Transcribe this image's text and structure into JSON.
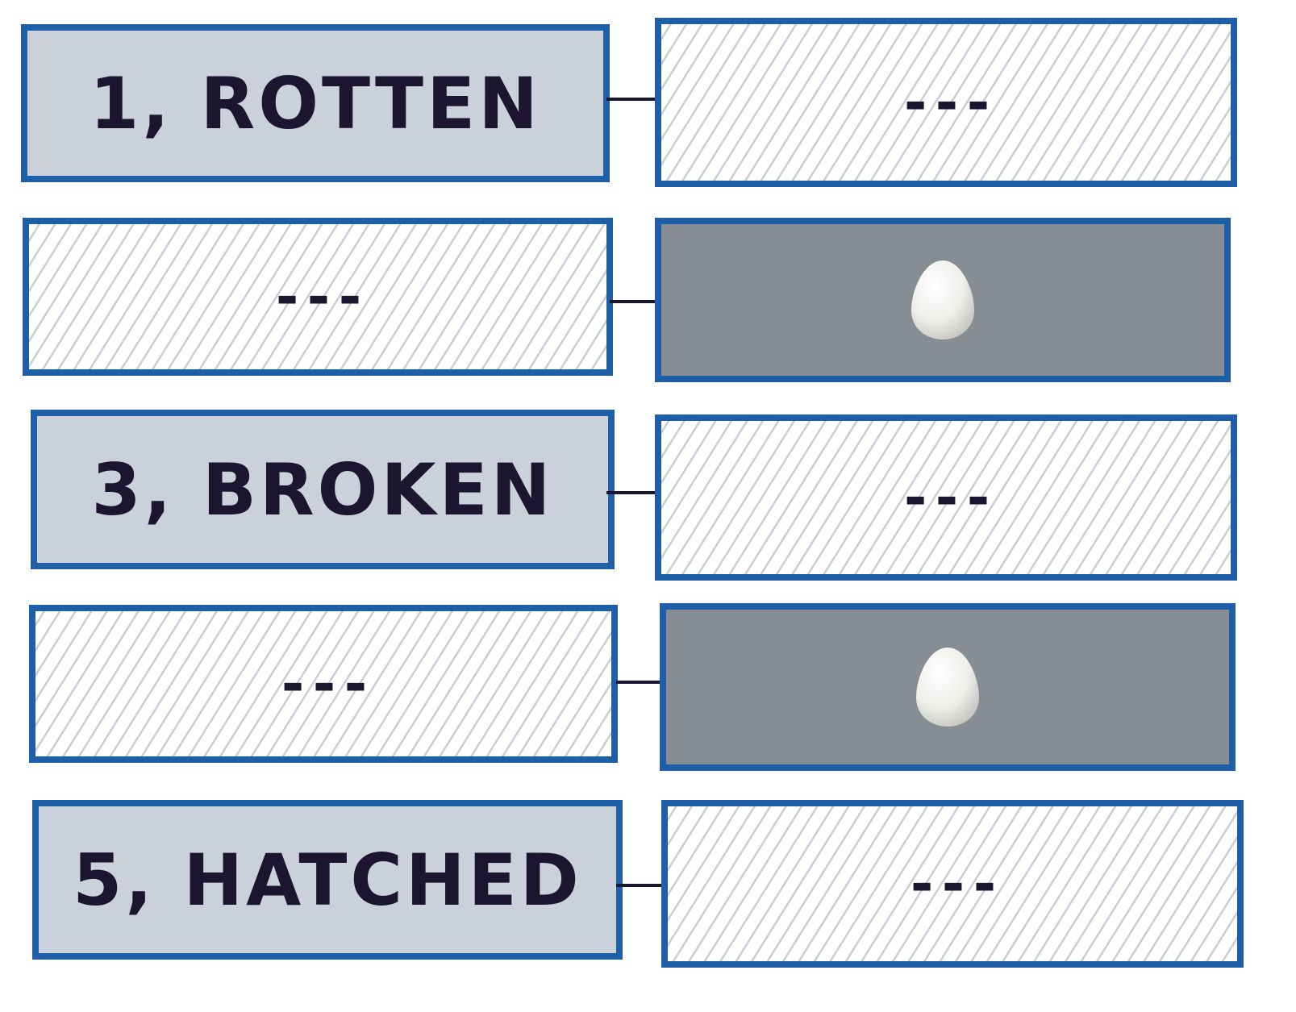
{
  "rows": [
    {
      "left": {
        "type": "label",
        "text": "1, ROTTEN"
      },
      "right": {
        "type": "empty",
        "text": "---"
      }
    },
    {
      "left": {
        "type": "empty",
        "text": "---"
      },
      "right": {
        "type": "egg",
        "icon": "egg-icon"
      }
    },
    {
      "left": {
        "type": "label",
        "text": "3, BROKEN"
      },
      "right": {
        "type": "empty",
        "text": "---"
      }
    },
    {
      "left": {
        "type": "empty",
        "text": "---"
      },
      "right": {
        "type": "egg",
        "icon": "egg-icon"
      }
    },
    {
      "left": {
        "type": "label",
        "text": "5, HATCHED"
      },
      "right": {
        "type": "empty",
        "text": "---"
      }
    }
  ],
  "colors": {
    "border": "#1f5fa8",
    "label_fill": "#cbd1da",
    "egg_fill": "#868d95",
    "hatch": "#c9ced6",
    "ink": "#1b1530"
  }
}
